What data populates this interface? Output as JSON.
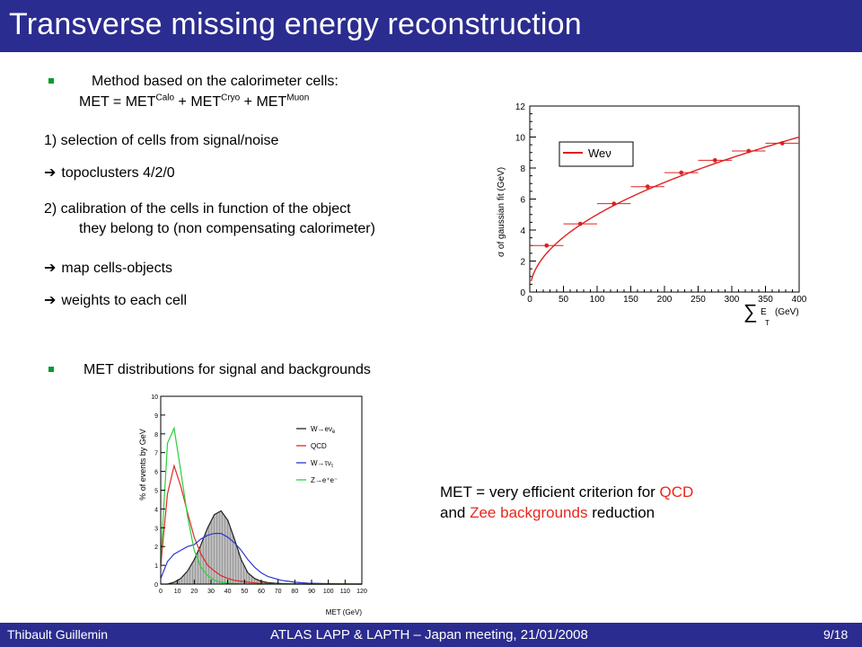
{
  "slide": {
    "title": "Transverse missing energy reconstruction",
    "bullet1": "Method based on the calorimeter cells:",
    "met_eq": {
      "prefix": "MET = MET",
      "calo": "Calo",
      "plus1": " + MET",
      "cryo": "Cryo",
      "plus2": " + MET",
      "muon": "Muon"
    },
    "step1": "1) selection of cells from signal/noise",
    "arrow": "➔",
    "step1a": "topoclusters 4/2/0",
    "step2_line1": "2) calibration of the cells in function of the object",
    "step2_line2": "they belong to (non compensating calorimeter)",
    "step2a": "map cells-objects",
    "step2b": "weights to each cell",
    "bullet2": "MET distributions for signal and backgrounds",
    "conclusion": {
      "p1": "MET = very efficient criterion for ",
      "qcd": "QCD",
      "p2": "and ",
      "zee": "Zee backgrounds",
      "p3": " reduction"
    }
  },
  "footer": {
    "author": "Thibault Guillemin",
    "meeting": "ATLAS LAPP & LAPTH – Japan meeting, 21/01/2008",
    "page": "9/18"
  },
  "colors": {
    "bar": "#2b2c8f",
    "bullet": "#0c9a2e",
    "highlight": "#e8261d"
  },
  "chart_data": [
    {
      "type": "scatter",
      "ylabel": "σ of gaussian fit (GeV)",
      "xlabel": "∑ E_T (GeV)",
      "xlabel_main": "∑",
      "xlabel_E": "E",
      "xlabel_T": "T",
      "xlabel_unit": "(GeV)",
      "xlim": [
        0,
        400
      ],
      "ylim": [
        0,
        12
      ],
      "xticks": [
        "0",
        "50",
        "100",
        "150",
        "200",
        "250",
        "300",
        "350",
        "400"
      ],
      "yticks": [
        "0",
        "2",
        "4",
        "6",
        "8",
        "10",
        "12"
      ],
      "legend": "Weν",
      "series": [
        {
          "name": "Weν",
          "x": [
            25,
            75,
            125,
            175,
            225,
            275,
            325,
            375
          ],
          "y": [
            3.0,
            4.4,
            5.7,
            6.8,
            7.7,
            8.5,
            9.1,
            9.6
          ],
          "xerr": 25
        }
      ],
      "fit_curve": {
        "formula": "0.5*sqrt(x)",
        "x_range": [
          2,
          400
        ]
      }
    },
    {
      "type": "line",
      "ylabel": "% of events by GeV",
      "xlabel": "MET (GeV)",
      "xlim": [
        0,
        120
      ],
      "ylim": [
        0,
        10
      ],
      "xticks": [
        "0",
        "10",
        "20",
        "30",
        "40",
        "50",
        "60",
        "70",
        "80",
        "90",
        "100",
        "110",
        "120"
      ],
      "yticks": [
        "0",
        "1",
        "2",
        "3",
        "4",
        "5",
        "6",
        "7",
        "8",
        "9",
        "10"
      ],
      "x": [
        0,
        4,
        8,
        12,
        16,
        20,
        24,
        28,
        32,
        36,
        40,
        44,
        48,
        52,
        56,
        60,
        64,
        68,
        72,
        76,
        80,
        88,
        96,
        104,
        112,
        120
      ],
      "series": [
        {
          "name": "W→eν_e",
          "label_main": "W→eν",
          "label_sub": "e",
          "color": "#222222",
          "values": [
            0,
            0,
            0.1,
            0.3,
            0.7,
            1.3,
            2.1,
            3.0,
            3.7,
            3.9,
            3.4,
            2.4,
            1.3,
            0.6,
            0.3,
            0.15,
            0.08,
            0.05,
            0.03,
            0.02,
            0.01,
            0,
            0,
            0,
            0,
            0
          ]
        },
        {
          "name": "QCD",
          "label_main": "QCD",
          "label_sub": "",
          "color": "#e02828",
          "values": [
            1.0,
            4.8,
            6.3,
            5.2,
            3.8,
            2.5,
            1.6,
            1.0,
            0.7,
            0.45,
            0.3,
            0.2,
            0.15,
            0.1,
            0.06,
            0.04,
            0.03,
            0.02,
            0.01,
            0.01,
            0,
            0,
            0,
            0,
            0,
            0
          ]
        },
        {
          "name": "W→τν_τ",
          "label_main": "W→τν",
          "label_sub": "τ",
          "color": "#2a35d8",
          "values": [
            0.3,
            1.2,
            1.6,
            1.8,
            2.0,
            2.1,
            2.4,
            2.6,
            2.7,
            2.7,
            2.5,
            2.2,
            1.8,
            1.3,
            0.9,
            0.6,
            0.4,
            0.3,
            0.2,
            0.15,
            0.1,
            0.05,
            0.03,
            0.02,
            0.01,
            0
          ]
        },
        {
          "name": "Z→e⁺e⁻",
          "label_main": "Z→e⁺e⁻",
          "label_sub": "",
          "color": "#2bcf3b",
          "values": [
            1.2,
            7.5,
            8.3,
            6.0,
            3.6,
            1.8,
            0.9,
            0.45,
            0.2,
            0.1,
            0.05,
            0.03,
            0.01,
            0,
            0,
            0,
            0,
            0,
            0,
            0,
            0,
            0,
            0,
            0,
            0,
            0
          ]
        }
      ]
    }
  ]
}
